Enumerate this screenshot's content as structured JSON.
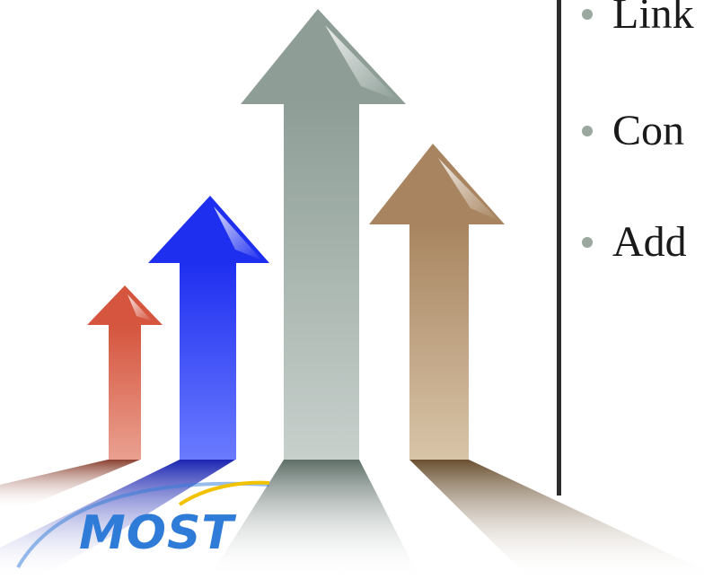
{
  "slide": {
    "bullets": [
      {
        "text": "Link"
      },
      {
        "text": "Con"
      },
      {
        "text": "Add"
      }
    ],
    "logo_text": "MOST"
  },
  "colors": {
    "arrow_red": "#d9604a",
    "arrow_blue": "#2a3cf5",
    "arrow_gray": "#9aaba5",
    "arrow_tan": "#b08f68",
    "bullet_dot": "#9aa8a0",
    "divider": "#2c2c2c",
    "logo_blue": "#2f7bd8",
    "logo_swoosh": "#f2c200"
  },
  "icons": {
    "bullet": "round-dot",
    "decorative": "rising-arrows"
  }
}
